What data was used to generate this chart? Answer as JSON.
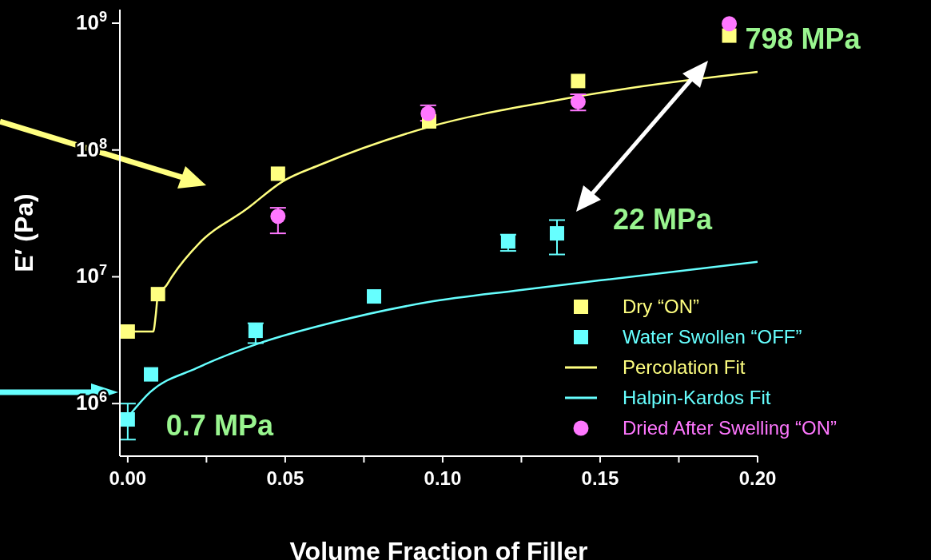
{
  "chart_data": {
    "type": "scatter",
    "xlabel": "Volume Fraction of Filler",
    "ylabel": "E′ (Pa)",
    "log": "y",
    "legend": "bottom right",
    "xlim": [
      -0.0025,
      0.2
    ],
    "xticks": [
      {
        "value": 0,
        "label": "0.00"
      },
      {
        "value": 0.025,
        "label": null
      },
      {
        "value": 0.05,
        "label": "0.05"
      },
      {
        "value": 0.075,
        "label": null
      },
      {
        "value": 0.1,
        "label": "0.10"
      },
      {
        "value": 0.125,
        "label": null
      },
      {
        "value": 0.15,
        "label": "0.15"
      },
      {
        "value": 0.175,
        "label": null
      },
      {
        "value": 0.2,
        "label": "0.20"
      }
    ],
    "ylim": [
      385000,
      1280000000
    ],
    "yticks": [
      {
        "value": 1000000,
        "label": "10$^{6}$"
      },
      {
        "value": 10000000,
        "label": "10$^{7}$"
      },
      {
        "value": 100000000,
        "label": "10$^{8}$"
      },
      {
        "value": 1000000000,
        "label": "10$^{9}$"
      }
    ],
    "series": [
      {
        "name": "Dry “ON”",
        "marker": "square",
        "color": "#ffff80",
        "x": [
          0,
          0.0096,
          0.0477,
          0.0957,
          0.143,
          0.191
        ],
        "values": [
          3700000,
          7300000,
          65000000,
          168000000,
          350000000,
          798000000
        ]
      },
      {
        "name": "Water Swollen “OFF”",
        "marker": "square",
        "color": "#66ffff",
        "x": [
          0,
          0.0074,
          0.0406,
          0.0782,
          0.1208,
          0.1363
        ],
        "values": [
          750000,
          1700000,
          3750000,
          7000000,
          19000000,
          22000000
        ],
        "errors": [
          [
            520000,
            1000000
          ],
          null,
          [
            3000000,
            4300000
          ],
          null,
          [
            16000000,
            21500000
          ],
          [
            15000000,
            28000000
          ]
        ]
      },
      {
        "name": "Percolation Fit",
        "type": "line",
        "marker": "none",
        "color": "#ffff80",
        "x": [
          0,
          0.0081,
          0.0089,
          0.0096,
          0.0122,
          0.014,
          0.0228,
          0.0376,
          0.0492,
          0.0614,
          0.0957,
          0.1355,
          0.1604,
          0.2
        ],
        "values": [
          3700000,
          3700000,
          5000000,
          7300000,
          8500000,
          10000000,
          18500000,
          34000000,
          56500000,
          77000000,
          152000000,
          245000000,
          310000000,
          413000000
        ]
      },
      {
        "name": "Halpin-Kardos Fit",
        "type": "line",
        "marker": "none",
        "color": "#66ffff",
        "x": [
          0,
          0.0071,
          0.0218,
          0.0414,
          0.0657,
          0.0952,
          0.1244,
          0.1497,
          0.2
        ],
        "values": [
          780000,
          1230000,
          1900000,
          2970000,
          4400000,
          6300000,
          7850000,
          9350000,
          13100000
        ]
      },
      {
        "name": "Dried After Swelling “ON”",
        "marker": "circle",
        "color": "#ff77ff",
        "x": [
          0.0477,
          0.0954,
          0.143,
          0.191
        ],
        "values": [
          30000000,
          194000000,
          240000000,
          990000000
        ],
        "errors": [
          [
            22000000,
            35000000
          ],
          [
            170000000,
            225000000
          ],
          [
            205000000,
            275000000
          ],
          null
        ]
      }
    ],
    "annotations": [
      {
        "text": "798 MPa",
        "x": 0.191,
        "y": 798000000
      },
      {
        "text": "22 MPa",
        "x": 0.1363,
        "y": 22000000
      },
      {
        "text": "0.7 MPa",
        "x": 0,
        "y": 750000
      }
    ]
  }
}
